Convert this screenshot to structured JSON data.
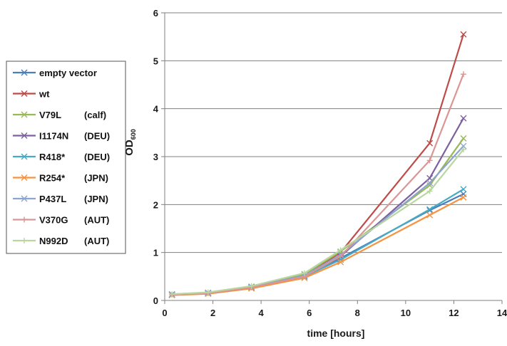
{
  "chart_data": {
    "type": "line",
    "xlabel": "time [hours]",
    "ylabel_main": "OD",
    "ylabel_sub": "600",
    "xlim": [
      0,
      14
    ],
    "ylim": [
      0,
      6
    ],
    "xticks": [
      0,
      2,
      4,
      6,
      8,
      10,
      12,
      14
    ],
    "yticks": [
      0,
      1,
      2,
      3,
      4,
      5,
      6
    ],
    "grid": "horizontal",
    "legend_position": "left",
    "x": [
      0.3,
      1.8,
      3.6,
      5.8,
      7.3,
      11.0,
      12.4
    ],
    "series": [
      {
        "name": "empty vector",
        "strain": "",
        "color": "#4a7ebb",
        "marker": "x",
        "values": [
          0.12,
          0.15,
          0.28,
          0.5,
          0.88,
          1.88,
          2.22
        ]
      },
      {
        "name": "wt",
        "strain": "",
        "color": "#be4b48",
        "marker": "x",
        "values": [
          0.12,
          0.16,
          0.28,
          0.52,
          1.0,
          3.28,
          5.55
        ]
      },
      {
        "name": "V79L",
        "strain": "(calf)",
        "color": "#98b954",
        "marker": "x",
        "values": [
          0.13,
          0.16,
          0.29,
          0.55,
          1.02,
          2.4,
          3.38
        ]
      },
      {
        "name": "I1174N",
        "strain": "(DEU)",
        "color": "#7d60a0",
        "marker": "x",
        "values": [
          0.12,
          0.15,
          0.27,
          0.5,
          0.92,
          2.55,
          3.8
        ]
      },
      {
        "name": "R418*",
        "strain": "(DEU)",
        "color": "#46aac5",
        "marker": "x",
        "values": [
          0.12,
          0.15,
          0.27,
          0.5,
          0.85,
          1.9,
          2.32
        ]
      },
      {
        "name": "R254*",
        "strain": "(JPN)",
        "color": "#f69240",
        "marker": "x",
        "values": [
          0.11,
          0.14,
          0.25,
          0.47,
          0.8,
          1.78,
          2.15
        ]
      },
      {
        "name": "P437L",
        "strain": "(JPN)",
        "color": "#8ca4cf",
        "marker": "x",
        "values": [
          0.12,
          0.15,
          0.28,
          0.52,
          0.95,
          2.45,
          3.22
        ]
      },
      {
        "name": "V370G",
        "strain": "(AUT)",
        "color": "#d99694",
        "marker": "+",
        "values": [
          0.12,
          0.15,
          0.27,
          0.5,
          0.92,
          2.92,
          4.72
        ]
      },
      {
        "name": "N992D",
        "strain": "(AUT)",
        "color": "#b9d5a0",
        "marker": "+",
        "values": [
          0.13,
          0.17,
          0.3,
          0.57,
          1.05,
          2.28,
          3.15
        ]
      }
    ]
  }
}
